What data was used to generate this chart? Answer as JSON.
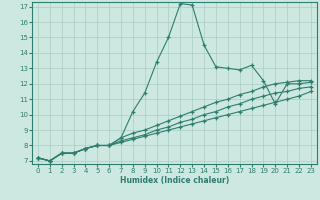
{
  "xlabel": "Humidex (Indice chaleur)",
  "xlim": [
    -0.5,
    23.5
  ],
  "ylim": [
    6.8,
    17.3
  ],
  "yticks": [
    7,
    8,
    9,
    10,
    11,
    12,
    13,
    14,
    15,
    16,
    17
  ],
  "xticks": [
    0,
    1,
    2,
    3,
    4,
    5,
    6,
    7,
    8,
    9,
    10,
    11,
    12,
    13,
    14,
    15,
    16,
    17,
    18,
    19,
    20,
    21,
    22,
    23
  ],
  "background_color": "#cce8e0",
  "line_color": "#2e7d6e",
  "grid_color": "#aaccc4",
  "lines": [
    {
      "x": [
        0,
        1,
        2,
        3,
        4,
        5,
        6,
        7,
        8,
        9,
        10,
        11,
        12,
        13,
        14,
        15,
        16,
        17,
        18,
        19,
        20,
        21,
        22,
        23
      ],
      "y": [
        7.2,
        7.0,
        7.5,
        7.5,
        7.8,
        8.0,
        8.0,
        8.5,
        10.2,
        11.4,
        13.4,
        15.0,
        17.2,
        17.1,
        14.5,
        13.1,
        13.0,
        12.9,
        13.2,
        12.2,
        10.7,
        12.0,
        12.0,
        12.1
      ]
    },
    {
      "x": [
        0,
        1,
        2,
        3,
        4,
        5,
        6,
        7,
        8,
        9,
        10,
        11,
        12,
        13,
        14,
        15,
        16,
        17,
        18,
        19,
        20,
        21,
        22,
        23
      ],
      "y": [
        7.2,
        7.0,
        7.5,
        7.5,
        7.8,
        8.0,
        8.0,
        8.5,
        8.8,
        9.0,
        9.3,
        9.6,
        9.9,
        10.2,
        10.5,
        10.8,
        11.0,
        11.3,
        11.5,
        11.8,
        12.0,
        12.1,
        12.2,
        12.2
      ]
    },
    {
      "x": [
        0,
        1,
        2,
        3,
        4,
        5,
        6,
        7,
        8,
        9,
        10,
        11,
        12,
        13,
        14,
        15,
        16,
        17,
        18,
        19,
        20,
        21,
        22,
        23
      ],
      "y": [
        7.2,
        7.0,
        7.5,
        7.5,
        7.8,
        8.0,
        8.0,
        8.3,
        8.5,
        8.7,
        9.0,
        9.2,
        9.5,
        9.7,
        10.0,
        10.2,
        10.5,
        10.7,
        11.0,
        11.2,
        11.4,
        11.5,
        11.7,
        11.8
      ]
    },
    {
      "x": [
        0,
        1,
        2,
        3,
        4,
        5,
        6,
        7,
        8,
        9,
        10,
        11,
        12,
        13,
        14,
        15,
        16,
        17,
        18,
        19,
        20,
        21,
        22,
        23
      ],
      "y": [
        7.2,
        7.0,
        7.5,
        7.5,
        7.8,
        8.0,
        8.0,
        8.2,
        8.4,
        8.6,
        8.8,
        9.0,
        9.2,
        9.4,
        9.6,
        9.8,
        10.0,
        10.2,
        10.4,
        10.6,
        10.8,
        11.0,
        11.2,
        11.5
      ]
    }
  ]
}
